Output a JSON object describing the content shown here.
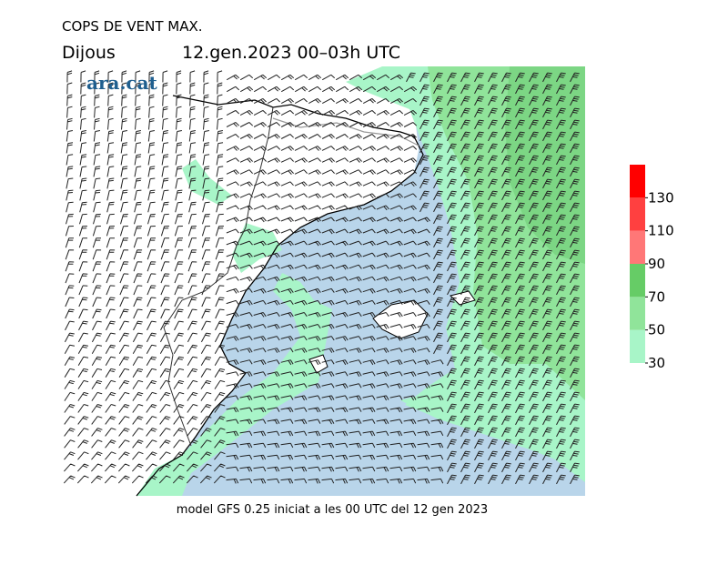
{
  "header": {
    "title": "COPS DE VENT MAX.",
    "day": "Dijous",
    "period": "12.gen.2023 00–03h UTC",
    "brand": "ara.cat"
  },
  "footer": "model GFS 0.25 iniciat a les 00 UTC del 12 gen 2023",
  "colorbar": {
    "lim": [
      30,
      150
    ],
    "ticks": [
      30,
      50,
      70,
      90,
      110,
      130
    ],
    "bins": [
      30,
      50,
      70,
      90,
      110,
      130,
      150
    ],
    "colors": [
      "#a8f5c8",
      "#90e49a",
      "#66cc66",
      "#ff7777",
      "#ff4040",
      "#ff0000"
    ]
  }
}
